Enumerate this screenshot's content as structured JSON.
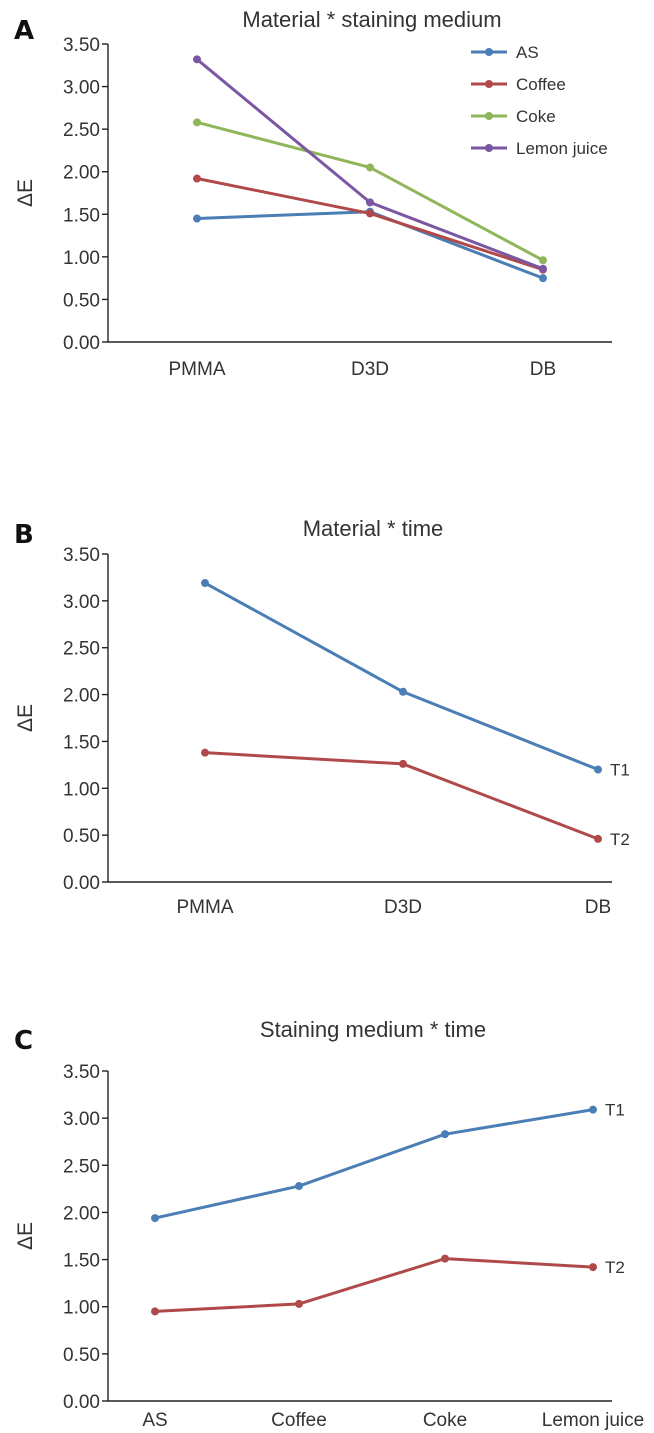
{
  "panels": [
    {
      "letter": "A",
      "chart_data": {
        "type": "line",
        "title": "Material * staining medium",
        "xlabel": "",
        "ylabel": "ΔE",
        "categories": [
          "PMMA",
          "D3D",
          "DB"
        ],
        "ylim": [
          0,
          3.5
        ],
        "yticks": [
          "0.00",
          "0.50",
          "1.00",
          "1.50",
          "2.00",
          "2.50",
          "3.00",
          "3.50"
        ],
        "grid": false,
        "legend": "top-right",
        "series": [
          {
            "name": "AS",
            "color": "#4a7eb5",
            "values": [
              1.45,
              1.53,
              0.75
            ]
          },
          {
            "name": "Coffee",
            "color": "#b04a4a",
            "values": [
              1.92,
              1.51,
              0.85
            ]
          },
          {
            "name": "Coke",
            "color": "#8fb65a",
            "values": [
              2.58,
              2.05,
              0.96
            ]
          },
          {
            "name": "Lemon juice",
            "color": "#7b57a3",
            "values": [
              3.32,
              1.64,
              0.86
            ]
          }
        ]
      }
    },
    {
      "letter": "B",
      "chart_data": {
        "type": "line",
        "title": "Material * time",
        "xlabel": "",
        "ylabel": "ΔE",
        "categories": [
          "PMMA",
          "D3D",
          "DB"
        ],
        "ylim": [
          0,
          3.5
        ],
        "yticks": [
          "0.00",
          "0.50",
          "1.00",
          "1.50",
          "2.00",
          "2.50",
          "3.00",
          "3.50"
        ],
        "grid": false,
        "legend": "end-labels",
        "series": [
          {
            "name": "T1",
            "color": "#4a7eb5",
            "values": [
              3.19,
              2.03,
              1.2
            ]
          },
          {
            "name": "T2",
            "color": "#b04a4a",
            "values": [
              1.38,
              1.26,
              0.46
            ]
          }
        ]
      }
    },
    {
      "letter": "C",
      "chart_data": {
        "type": "line",
        "title": "Staining medium * time",
        "xlabel": "",
        "ylabel": "ΔE",
        "categories": [
          "AS",
          "Coffee",
          "Coke",
          "Lemon juice"
        ],
        "ylim": [
          0,
          3.5
        ],
        "yticks": [
          "0.00",
          "0.50",
          "1.00",
          "1.50",
          "2.00",
          "2.50",
          "3.00",
          "3.50"
        ],
        "grid": false,
        "legend": "end-labels",
        "series": [
          {
            "name": "T1",
            "color": "#4a7eb5",
            "values": [
              1.94,
              2.28,
              2.83,
              3.09
            ]
          },
          {
            "name": "T2",
            "color": "#b04a4a",
            "values": [
              0.95,
              1.03,
              1.51,
              1.42
            ]
          }
        ]
      }
    }
  ]
}
